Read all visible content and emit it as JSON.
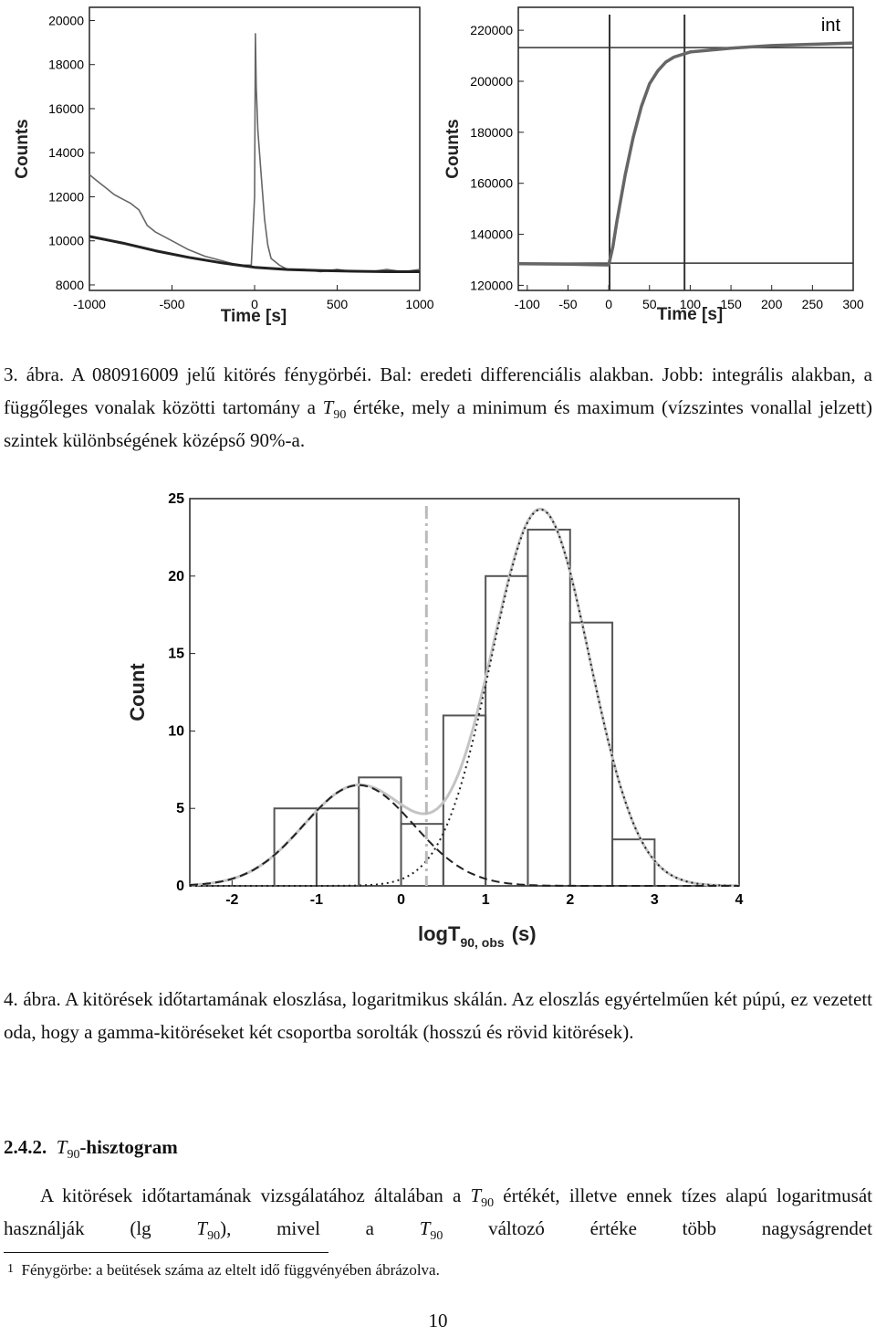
{
  "chart_data": [
    {
      "type": "line",
      "xlabel": "Time [s]",
      "ylabel": "Counts",
      "xlim": [
        -1000,
        1000
      ],
      "ylim": [
        7750,
        20600
      ],
      "xticks": [
        -1000,
        -500,
        0,
        500,
        1000
      ],
      "yticks": [
        8000,
        10000,
        12000,
        14000,
        16000,
        18000,
        20000
      ],
      "series": [
        {
          "color": "#666666",
          "width": 1.6,
          "x": [
            -1000,
            -950,
            -900,
            -850,
            -800,
            -750,
            -700,
            -650,
            -600,
            -500,
            -400,
            -300,
            -200,
            -100,
            -20,
            0,
            5,
            10,
            20,
            40,
            60,
            80,
            100,
            150,
            200,
            300,
            400,
            500,
            600,
            700,
            800,
            900,
            1000
          ],
          "values": [
            13000,
            12700,
            12400,
            12100,
            11900,
            11700,
            11400,
            10700,
            10400,
            10000,
            9600,
            9300,
            9100,
            8900,
            8900,
            12000,
            19400,
            17000,
            15000,
            13000,
            11000,
            9800,
            9200,
            8900,
            8700,
            8700,
            8600,
            8700,
            8600,
            8600,
            8700,
            8600,
            8700
          ]
        },
        {
          "color": "#222222",
          "width": 3,
          "x": [
            -1000,
            -800,
            -600,
            -400,
            -200,
            0,
            200,
            400,
            600,
            800,
            1000
          ],
          "values": [
            10200,
            9900,
            9550,
            9250,
            9000,
            8800,
            8700,
            8650,
            8620,
            8600,
            8600
          ]
        }
      ]
    },
    {
      "type": "line",
      "xlabel": "Time [s]",
      "ylabel": "Counts",
      "annotation": "int",
      "xlim": [
        -111,
        300
      ],
      "ylim": [
        118000,
        229000
      ],
      "xticks": [
        -100,
        -50,
        0,
        50,
        100,
        150,
        200,
        250,
        300
      ],
      "yticks": [
        120000,
        140000,
        160000,
        180000,
        200000,
        220000
      ],
      "hlines": [
        128700,
        213200
      ],
      "vlines": [
        1,
        93
      ],
      "series": [
        {
          "color": "#666666",
          "width": 3.5,
          "x": [
            -111,
            -50,
            0,
            5,
            10,
            20,
            30,
            40,
            50,
            60,
            70,
            80,
            100,
            150,
            200,
            250,
            300
          ],
          "values": [
            128500,
            128300,
            128000,
            135000,
            145000,
            163000,
            178000,
            190000,
            199000,
            204000,
            207500,
            209500,
            211500,
            213000,
            214000,
            214500,
            215000
          ]
        }
      ]
    },
    {
      "type": "histogram",
      "xlabel": [
        "logT",
        "90, obs",
        "(s)"
      ],
      "ylabel": "Count",
      "xlim": [
        -2.5,
        4
      ],
      "ylim": [
        0,
        25
      ],
      "xticks": [
        -2,
        -1,
        0,
        1,
        2,
        3,
        4
      ],
      "yticks": [
        0,
        5,
        10,
        15,
        20,
        25
      ],
      "bins": [
        -1.5,
        -1,
        -0.5,
        0,
        0.5,
        1,
        1.5,
        2,
        2.5,
        3
      ],
      "counts": [
        5,
        5,
        7,
        4,
        11,
        20,
        23,
        17,
        3
      ],
      "color": "#555555",
      "vline": 0.3,
      "fits": [
        {
          "amplitude": 6.5,
          "mu": -0.5,
          "sigma": 0.65,
          "dash": "9 5"
        },
        {
          "amplitude": 24.3,
          "mu": 1.65,
          "sigma": 0.58,
          "dash": "2 4"
        }
      ],
      "sum_color": "#c4c4c4"
    }
  ],
  "text": {
    "caption3": [
      "3. ábra. A 080916009 jelű kitörés fénygörbéi. Bal: eredeti differenciális alakban. Jobb: integrális alakban, a függőleges vonalak közötti tartomány a ",
      "T",
      "90",
      " értéke, mely a minimum és maximum (vízszintes vonallal jelzett) szintek különbségének középső 90%-a."
    ],
    "caption4": "4. ábra. A kitörések időtartamának eloszlása, logaritmikus skálán. Az eloszlás egyértelműen két púpú, ez vezetett oda, hogy a gamma-kitöréseket két csoportba sorolták (hosszú és rövid kitörések).",
    "heading": [
      "2.4.2.",
      "T",
      "90",
      "-hisztogram"
    ],
    "paragraph": [
      "A kitörések időtartamának vizsgálatához általában a ",
      "T",
      "90",
      " értékét, illetve ennek tízes alapú logaritmusát használják (lg ",
      "T",
      "90",
      "), mivel a ",
      "T",
      "90",
      " változó értéke több nagyságrendet"
    ],
    "footnote": [
      "1",
      "Fénygörbe: a beütések száma az eltelt idő függvényében ábrázolva."
    ],
    "page_number": "10"
  }
}
